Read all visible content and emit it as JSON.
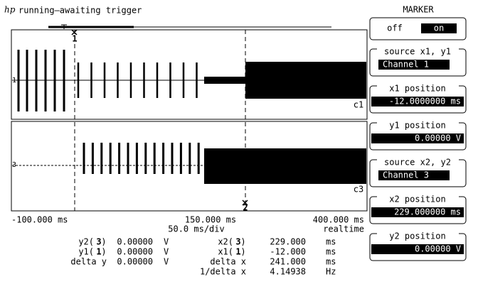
{
  "header": {
    "logo": "hp",
    "status": "running—awaiting trigger"
  },
  "panel": {
    "title": "MARKER",
    "toggle": {
      "off": "off",
      "on": "on"
    },
    "fields": [
      {
        "label": "source x1, y1",
        "value": "Channel 1"
      },
      {
        "label": "x1 position",
        "value": "-12.0000000 ms"
      },
      {
        "label": "y1 position",
        "value": "0.00000 V"
      },
      {
        "label": "source x2, y2",
        "value": "Channel 3"
      },
      {
        "label": "x2 position",
        "value": "229.000000 ms"
      },
      {
        "label": "y2 position",
        "value": "0.00000 V"
      }
    ]
  },
  "display": {
    "channels": [
      "c1",
      "c3"
    ],
    "trace_markers": [
      "1",
      "3"
    ],
    "cursor_markers": [
      "1",
      "2"
    ],
    "x_labels": [
      "-100.000 ms",
      "150.000 ms",
      "400.000 ms"
    ],
    "timebase": "50.0 ms/div",
    "mode": "realtime"
  },
  "readouts": {
    "left": [
      {
        "label": "y2(",
        "ch": "3",
        "close": ")",
        "value": "0.00000",
        "unit": "V"
      },
      {
        "label": "y1(",
        "ch": "1",
        "close": ")",
        "value": "0.00000",
        "unit": "V"
      },
      {
        "label": "delta y",
        "value": "0.00000",
        "unit": "V"
      }
    ],
    "right": [
      {
        "label": "x2(",
        "ch": "3",
        "close": ")",
        "value": "229.000",
        "unit": "ms"
      },
      {
        "label": "x1(",
        "ch": "1",
        "close": ")",
        "value": "-12.000",
        "unit": "ms"
      },
      {
        "label": "delta x",
        "value": "241.000",
        "unit": "ms"
      },
      {
        "label": "1/delta x",
        "value": "4.14938",
        "unit": "Hz"
      }
    ]
  }
}
